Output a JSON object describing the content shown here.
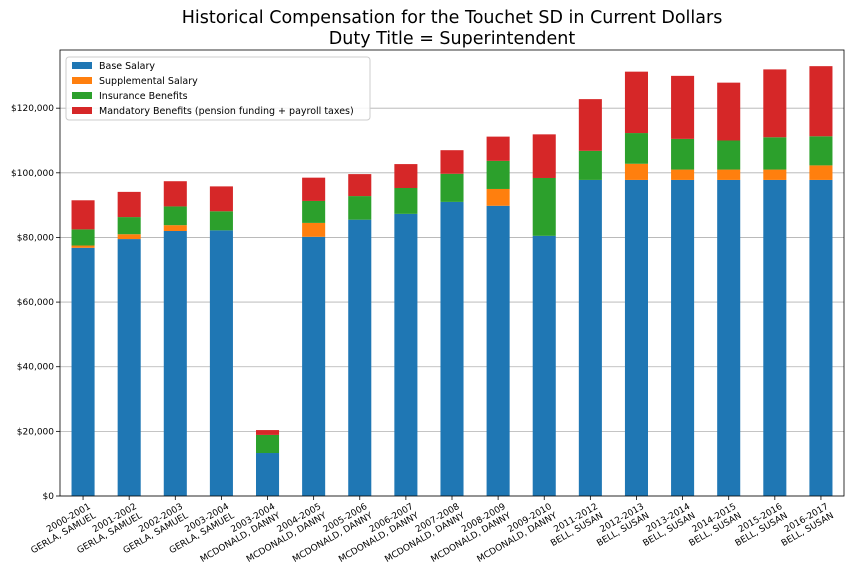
{
  "chart_data": {
    "type": "bar",
    "stacked": true,
    "title": "Historical Compensation for the Touchet SD in Current Dollars",
    "subtitle": "Duty Title = Superintendent",
    "categories": [
      [
        "2000-2001",
        "GERLA, SAMUEL"
      ],
      [
        "2001-2002",
        "GERLA, SAMUEL"
      ],
      [
        "2002-2003",
        "GERLA, SAMUEL"
      ],
      [
        "2003-2004",
        "GERLA, SAMUEL"
      ],
      [
        "2003-2004",
        "MCDONALD, DANNY"
      ],
      [
        "2004-2005",
        "MCDONALD, DANNY"
      ],
      [
        "2005-2006",
        "MCDONALD, DANNY"
      ],
      [
        "2006-2007",
        "MCDONALD, DANNY"
      ],
      [
        "2007-2008",
        "MCDONALD, DANNY"
      ],
      [
        "2008-2009",
        "MCDONALD, DANNY"
      ],
      [
        "2009-2010",
        "MCDONALD, DANNY"
      ],
      [
        "2011-2012",
        "BELL, SUSAN"
      ],
      [
        "2012-2013",
        "BELL, SUSAN"
      ],
      [
        "2013-2014",
        "BELL, SUSAN"
      ],
      [
        "2014-2015",
        "BELL, SUSAN"
      ],
      [
        "2015-2016",
        "BELL, SUSAN"
      ],
      [
        "2016-2017",
        "BELL, SUSAN"
      ]
    ],
    "series": [
      {
        "name": "Base Salary",
        "color": "#1f77b4",
        "values": [
          76800,
          79500,
          82000,
          82200,
          13300,
          80200,
          85500,
          87300,
          91000,
          89800,
          80500,
          97800,
          97800,
          97800,
          97800,
          97800,
          97800
        ]
      },
      {
        "name": "Supplemental Salary",
        "color": "#ff7f0e",
        "values": [
          700,
          1500,
          1800,
          0,
          0,
          4300,
          0,
          0,
          0,
          5200,
          0,
          0,
          5000,
          3200,
          3200,
          3200,
          4500
        ]
      },
      {
        "name": "Insurance Benefits",
        "color": "#2ca02c",
        "values": [
          5000,
          5300,
          5800,
          5900,
          5600,
          6800,
          7300,
          8000,
          8700,
          8700,
          17900,
          9000,
          9500,
          9500,
          9000,
          10000,
          9000
        ]
      },
      {
        "name": "Mandatory Benefits (pension funding + payroll taxes)",
        "color": "#d62728",
        "values": [
          9000,
          7800,
          7800,
          7700,
          1500,
          7200,
          6800,
          7400,
          7300,
          7500,
          13500,
          16000,
          19000,
          19500,
          17900,
          21000,
          21700
        ]
      }
    ],
    "ylim": [
      0,
      138000
    ],
    "yticks": [
      0,
      20000,
      40000,
      60000,
      80000,
      100000,
      120000
    ],
    "ytick_labels": [
      "$0",
      "$20,000",
      "$40,000",
      "$60,000",
      "$80,000",
      "$100,000",
      "$120,000"
    ],
    "grid": "y",
    "legend": "top-left"
  }
}
